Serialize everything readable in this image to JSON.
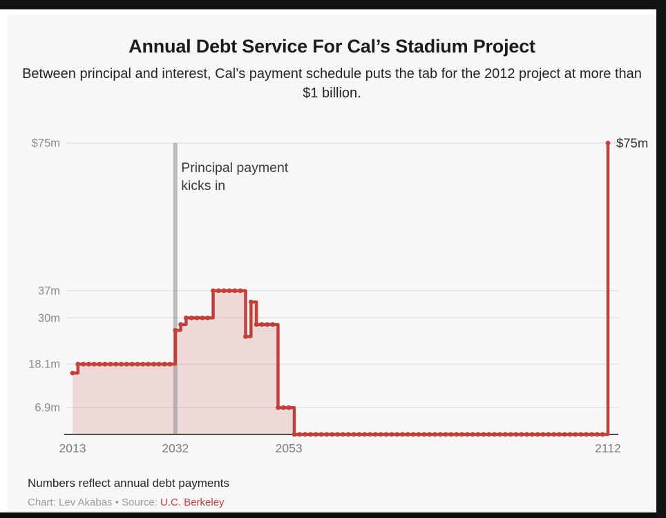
{
  "header": {
    "title": "Annual Debt Service For Cal’s Stadium Project",
    "subtitle": "Between principal and interest, Cal’s payment schedule puts the tab for the 2012 project at more than $1 billion."
  },
  "chart_data": {
    "type": "area",
    "title": "Annual Debt Service For Cal’s Stadium Project",
    "subtitle": "Between principal and interest, Cal’s payment schedule puts the tab for the 2012 project at more than $1 billion.",
    "xlabel": "",
    "ylabel": "",
    "xlim": [
      2013,
      2114
    ],
    "ylim": [
      0,
      75
    ],
    "grid": true,
    "units": "millions of dollars",
    "series_runs": [
      {
        "from": 2013,
        "to": 2013,
        "value": 15.8
      },
      {
        "from": 2014,
        "to": 2031,
        "value": 18.1
      },
      {
        "from": 2032,
        "to": 2032,
        "value": 26.8
      },
      {
        "from": 2033,
        "to": 2033,
        "value": 28.3
      },
      {
        "from": 2034,
        "to": 2038,
        "value": 30
      },
      {
        "from": 2039,
        "to": 2044,
        "value": 37
      },
      {
        "from": 2045,
        "to": 2045,
        "value": 25.2
      },
      {
        "from": 2046,
        "to": 2046,
        "value": 34.1
      },
      {
        "from": 2047,
        "to": 2050,
        "value": 28.3
      },
      {
        "from": 2051,
        "to": 2053,
        "value": 6.9
      },
      {
        "from": 2054,
        "to": 2111,
        "value": 0
      },
      {
        "from": 2112,
        "to": 2112,
        "value": 75
      }
    ],
    "y_ticks": [
      {
        "value": 75,
        "label": "$75m"
      },
      {
        "value": 37,
        "label": "37m"
      },
      {
        "value": 30,
        "label": "30m"
      },
      {
        "value": 18.1,
        "label": "18.1m"
      },
      {
        "value": 6.9,
        "label": "6.9m"
      }
    ],
    "x_ticks": [
      {
        "year": 2013,
        "label": "2013"
      },
      {
        "year": 2032,
        "label": "2032"
      },
      {
        "year": 2053,
        "label": "2053"
      },
      {
        "year": 2112,
        "label": "2112"
      }
    ],
    "annotation_vline": {
      "year": 2032,
      "label_lines": [
        "Principal payment",
        "kicks in"
      ]
    },
    "annotation_point": {
      "year": 2112,
      "value": 75,
      "label": "$75m"
    }
  },
  "colors": {
    "line": "#c0413b",
    "fill": "rgba(192,65,59,0.16)",
    "vline_bar": "rgba(140,140,140,0.55)",
    "gridline": "#e4e2e2",
    "axis": "#4d4d4d",
    "y_tick_text": "#8a8a8a",
    "x_tick_text": "#7b7b7b",
    "annotation_text": "#3a3a3a",
    "spike_label_text": "#2e2e2e",
    "source_link": "#b5433e"
  },
  "footer": {
    "note": "Numbers reflect annual debt payments",
    "credit_prefix": "Chart: Lev Akabas • Source: ",
    "source_link": "U.C. Berkeley"
  }
}
